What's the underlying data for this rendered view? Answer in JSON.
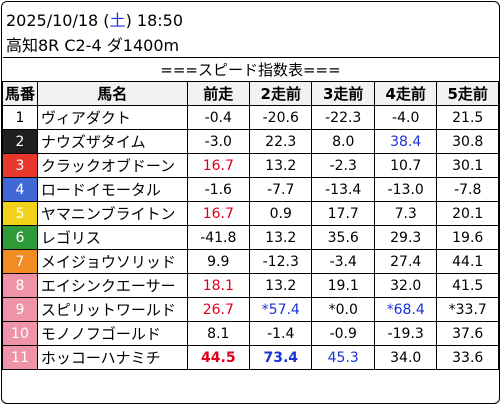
{
  "header": {
    "date": "2025/10/18 (",
    "weekday": "土",
    "time_suffix": ") 18:50",
    "race": "高知8R C2-4 ダ1400m"
  },
  "table": {
    "title": "===スピード指数表===",
    "columns": [
      "馬番",
      "馬名",
      "前走",
      "2走前",
      "3走前",
      "4走前",
      "5走前"
    ],
    "rows": [
      {
        "num": "1",
        "name": "ヴィアダクト",
        "vals": [
          "-0.4",
          "-20.6",
          "-22.3",
          "-4.0",
          "21.5"
        ]
      },
      {
        "num": "2",
        "name": "ナウズザタイム",
        "vals": [
          "-3.0",
          "22.3",
          "8.0",
          "38.4",
          "30.8"
        ]
      },
      {
        "num": "3",
        "name": "クラックオブドーン",
        "vals": [
          "16.7",
          "13.2",
          "-2.3",
          "10.7",
          "30.1"
        ]
      },
      {
        "num": "4",
        "name": "ロードイモータル",
        "vals": [
          "-1.6",
          "-7.7",
          "-13.4",
          "-13.0",
          "-7.8"
        ]
      },
      {
        "num": "5",
        "name": "ヤマニンブライトン",
        "vals": [
          "16.7",
          "0.9",
          "17.7",
          "7.3",
          "20.1"
        ]
      },
      {
        "num": "6",
        "name": "レゴリス",
        "vals": [
          "-41.8",
          "13.2",
          "35.6",
          "29.3",
          "19.6"
        ]
      },
      {
        "num": "7",
        "name": "メイジョウソリッド",
        "vals": [
          "9.9",
          "-12.3",
          "-3.4",
          "27.4",
          "44.1"
        ]
      },
      {
        "num": "8",
        "name": "エイシンクエーサー",
        "vals": [
          "18.1",
          "13.2",
          "19.1",
          "32.0",
          "41.5"
        ]
      },
      {
        "num": "9",
        "name": "スピリットワールド",
        "vals": [
          "26.7",
          "*57.4",
          "*0.0",
          "*68.4",
          "*33.7"
        ]
      },
      {
        "num": "10",
        "name": "モノノフゴールド",
        "vals": [
          "8.1",
          "-1.4",
          "-0.9",
          "-19.3",
          "37.6"
        ]
      },
      {
        "num": "11",
        "name": "ホッコーハナミチ",
        "vals": [
          "44.5",
          "73.4",
          "45.3",
          "34.0",
          "33.6"
        ]
      }
    ],
    "gate_colors": {
      "1": {
        "bg": "#ffffff",
        "fg": "#000000"
      },
      "2": {
        "bg": "#1f1f1f",
        "fg": "#ffffff"
      },
      "3": {
        "bg": "#e8372c",
        "fg": "#ffffff"
      },
      "4": {
        "bg": "#3f68d6",
        "fg": "#ffffff"
      },
      "5": {
        "bg": "#f2d21b",
        "fg": "#ffffff"
      },
      "6": {
        "bg": "#2e9a3a",
        "fg": "#ffffff"
      },
      "7": {
        "bg": "#f08c22",
        "fg": "#ffffff"
      },
      "8": {
        "bg": "#ef93a8",
        "fg": "#ffffff"
      },
      "9": {
        "bg": "#ef93a8",
        "fg": "#ffffff"
      },
      "10": {
        "bg": "#ef93a8",
        "fg": "#ffffff"
      },
      "11": {
        "bg": "#ef93a8",
        "fg": "#ffffff"
      }
    },
    "highlights": {
      "red": "#e0001b",
      "blue": "#1a33d6",
      "header_bg": "#f2f2f2",
      "row_bg": "#ffffff"
    }
  }
}
